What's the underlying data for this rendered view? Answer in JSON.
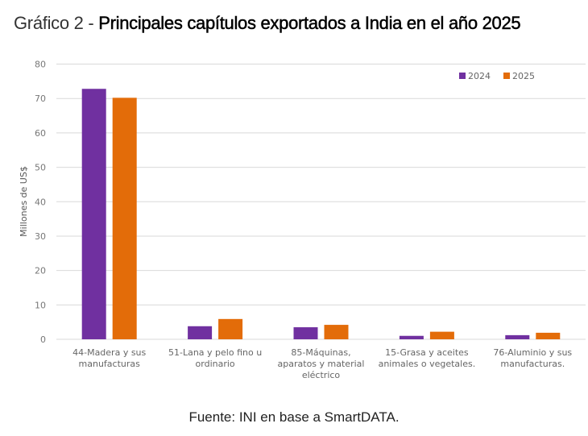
{
  "header": {
    "title_prefix": "Gráfico 2 - ",
    "title_main": "Principales capítulos exportados a India en el año 2025"
  },
  "footer": {
    "source": "Fuente: INI en base a SmartDATA."
  },
  "chart_data": {
    "type": "bar",
    "title": "Gráfico 2 - Principales capítulos exportados a India en el año 2025",
    "xlabel": "",
    "ylabel": "Millones de US$",
    "ylim": [
      0,
      80
    ],
    "yticks": [
      0,
      10,
      20,
      30,
      40,
      50,
      60,
      70,
      80
    ],
    "grid": true,
    "legend_position": "top-right",
    "categories": [
      [
        "44-Madera y sus",
        "manufacturas"
      ],
      [
        "51-Lana y pelo fino u",
        "ordinario"
      ],
      [
        "85-Máquinas,",
        "aparatos y material",
        "eléctrico"
      ],
      [
        "15-Grasa y aceites",
        "animales o vegetales."
      ],
      [
        "76-Aluminio y sus",
        "manufacturas."
      ]
    ],
    "series": [
      {
        "name": "2024",
        "color": "#7030A0",
        "values": [
          72.8,
          3.8,
          3.5,
          1.0,
          1.2
        ]
      },
      {
        "name": "2025",
        "color": "#E36C09",
        "values": [
          70.2,
          5.9,
          4.2,
          2.2,
          1.9
        ]
      }
    ]
  }
}
